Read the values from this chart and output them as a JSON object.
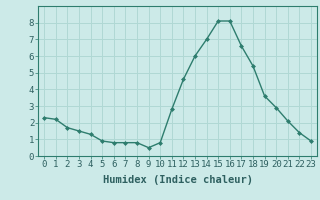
{
  "x": [
    0,
    1,
    2,
    3,
    4,
    5,
    6,
    7,
    8,
    9,
    10,
    11,
    12,
    13,
    14,
    15,
    16,
    17,
    18,
    19,
    20,
    21,
    22,
    23
  ],
  "y": [
    2.3,
    2.2,
    1.7,
    1.5,
    1.3,
    0.9,
    0.8,
    0.8,
    0.8,
    0.5,
    0.8,
    2.8,
    4.6,
    6.0,
    7.0,
    8.1,
    8.1,
    6.6,
    5.4,
    3.6,
    2.9,
    2.1,
    1.4,
    0.9
  ],
  "line_color": "#2e7d6e",
  "marker": "D",
  "marker_size": 2.0,
  "bg_color": "#cceae8",
  "grid_color": "#b0d8d4",
  "xlabel": "Humidex (Indice chaleur)",
  "xlim": [
    -0.5,
    23.5
  ],
  "ylim": [
    0,
    9
  ],
  "yticks": [
    0,
    1,
    2,
    3,
    4,
    5,
    6,
    7,
    8
  ],
  "xticks": [
    0,
    1,
    2,
    3,
    4,
    5,
    6,
    7,
    8,
    9,
    10,
    11,
    12,
    13,
    14,
    15,
    16,
    17,
    18,
    19,
    20,
    21,
    22,
    23
  ],
  "xlabel_fontsize": 7.5,
  "tick_fontsize": 6.5,
  "line_color_dark": "#2e7d6e",
  "tick_label_color": "#2e6060",
  "linewidth": 1.0
}
